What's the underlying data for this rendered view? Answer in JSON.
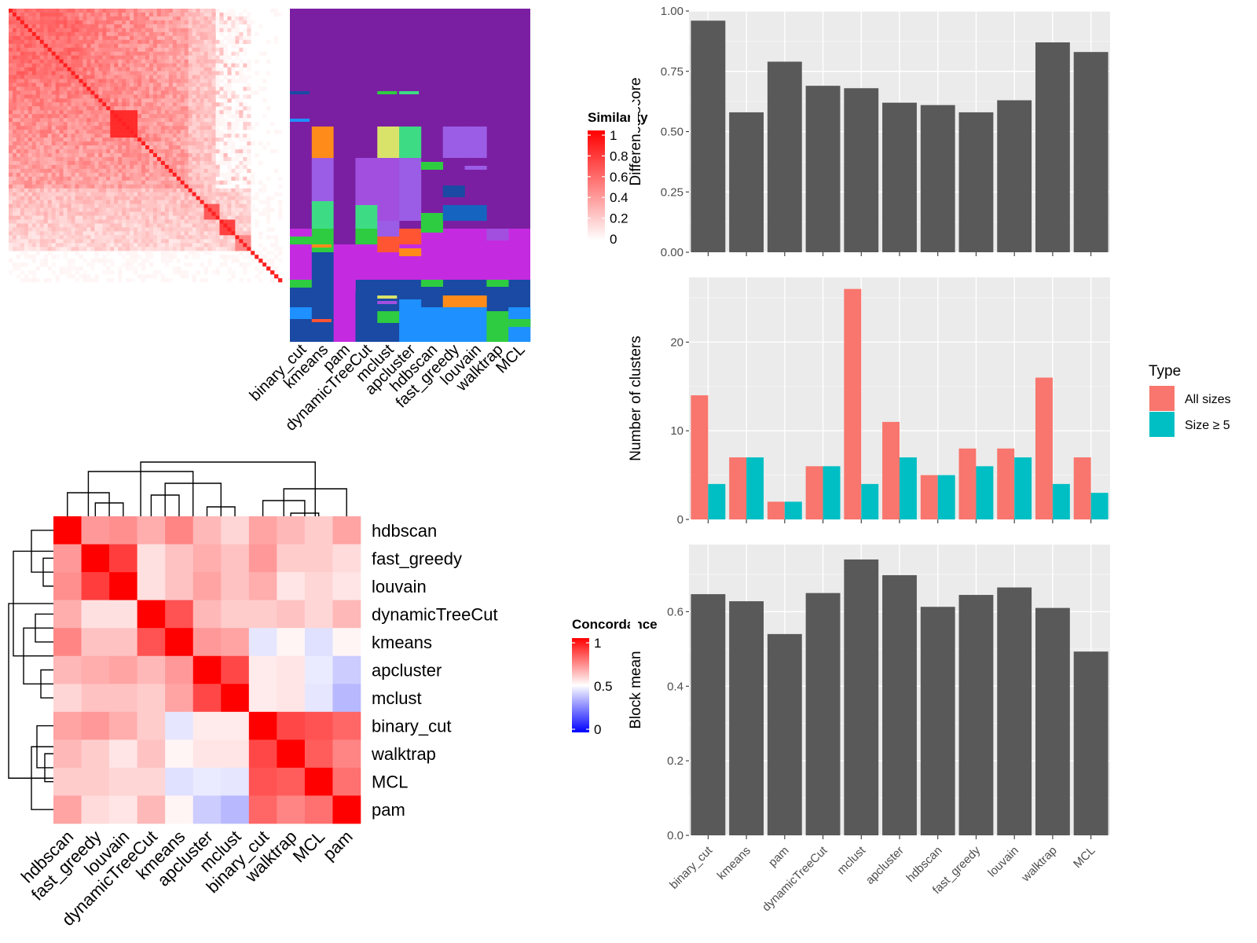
{
  "chart_data": [
    {
      "type": "heatmap",
      "panel": "similarity",
      "legend_title": "Similarity",
      "legend_ticks": [
        "1",
        "0.8",
        "0.6",
        "0.4",
        "0.2",
        "0"
      ],
      "legend_values": [
        1,
        0.8,
        0.6,
        0.4,
        0.2,
        0
      ],
      "colors": {
        "low": "#ffffff",
        "high": "#ff0000"
      },
      "cluster_columns": [
        "binary_cut",
        "kmeans",
        "pam",
        "dynamicTreeCut",
        "mclust",
        "apcluster",
        "hdbscan",
        "fast_greedy",
        "louvain",
        "walktrap",
        "MCL"
      ]
    },
    {
      "type": "heatmap",
      "panel": "concordance",
      "legend_title": "Concordance",
      "legend_ticks": [
        "1",
        "0.5",
        "0"
      ],
      "legend_values": [
        1,
        0.5,
        0
      ],
      "colors": {
        "low": "#0000ff",
        "mid": "#ffffff",
        "high": "#ff0000"
      },
      "rows": [
        "hdbscan",
        "fast_greedy",
        "louvain",
        "dynamicTreeCut",
        "kmeans",
        "apcluster",
        "mclust",
        "binary_cut",
        "walktrap",
        "MCL",
        "pam"
      ],
      "columns": [
        "hdbscan",
        "fast_greedy",
        "louvain",
        "dynamicTreeCut",
        "kmeans",
        "apcluster",
        "mclust",
        "binary_cut",
        "walktrap",
        "MCL",
        "pam"
      ],
      "values": [
        [
          1.0,
          0.7,
          0.72,
          0.66,
          0.74,
          0.64,
          0.58,
          0.68,
          0.64,
          0.6,
          0.68
        ],
        [
          0.7,
          1.0,
          0.88,
          0.56,
          0.62,
          0.66,
          0.62,
          0.7,
          0.6,
          0.6,
          0.57
        ],
        [
          0.72,
          0.88,
          1.0,
          0.56,
          0.62,
          0.68,
          0.62,
          0.66,
          0.55,
          0.58,
          0.55
        ],
        [
          0.66,
          0.56,
          0.56,
          1.0,
          0.84,
          0.64,
          0.6,
          0.6,
          0.62,
          0.58,
          0.64
        ],
        [
          0.74,
          0.62,
          0.62,
          0.84,
          1.0,
          0.7,
          0.68,
          0.45,
          0.52,
          0.44,
          0.52
        ],
        [
          0.64,
          0.66,
          0.68,
          0.64,
          0.7,
          1.0,
          0.86,
          0.54,
          0.55,
          0.46,
          0.4
        ],
        [
          0.58,
          0.62,
          0.62,
          0.6,
          0.68,
          0.86,
          1.0,
          0.54,
          0.55,
          0.45,
          0.36
        ],
        [
          0.68,
          0.7,
          0.66,
          0.6,
          0.45,
          0.54,
          0.54,
          1.0,
          0.86,
          0.84,
          0.8
        ],
        [
          0.64,
          0.6,
          0.55,
          0.62,
          0.52,
          0.55,
          0.55,
          0.86,
          1.0,
          0.82,
          0.74
        ],
        [
          0.6,
          0.6,
          0.58,
          0.58,
          0.44,
          0.46,
          0.45,
          0.84,
          0.82,
          1.0,
          0.78
        ],
        [
          0.68,
          0.57,
          0.55,
          0.64,
          0.52,
          0.4,
          0.36,
          0.8,
          0.74,
          0.78,
          1.0
        ]
      ]
    },
    {
      "type": "bar",
      "panel": "difference-score",
      "categories": [
        "binary_cut",
        "kmeans",
        "pam",
        "dynamicTreeCut",
        "mclust",
        "apcluster",
        "hdbscan",
        "fast_greedy",
        "louvain",
        "walktrap",
        "MCL"
      ],
      "values": [
        0.96,
        0.58,
        0.79,
        0.69,
        0.68,
        0.62,
        0.61,
        0.58,
        0.63,
        0.87,
        0.83
      ],
      "ylabel": "Difference score",
      "ylim": [
        0,
        1.0
      ],
      "yticks": [
        "0.00",
        "0.25",
        "0.50",
        "0.75",
        "1.00"
      ],
      "ytick_values": [
        0,
        0.25,
        0.5,
        0.75,
        1.0
      ],
      "bar_color": "#595959"
    },
    {
      "type": "bar",
      "panel": "number-of-clusters",
      "categories": [
        "binary_cut",
        "kmeans",
        "pam",
        "dynamicTreeCut",
        "mclust",
        "apcluster",
        "hdbscan",
        "fast_greedy",
        "louvain",
        "walktrap",
        "MCL"
      ],
      "series": [
        {
          "name": "All sizes",
          "values": [
            14,
            7,
            2,
            6,
            26,
            11,
            5,
            8,
            8,
            16,
            7
          ],
          "color": "#f8766d"
        },
        {
          "name": "Size ≥ 5",
          "values": [
            4,
            7,
            2,
            6,
            4,
            7,
            5,
            6,
            7,
            4,
            3
          ],
          "color": "#00bfc4"
        }
      ],
      "ylabel": "Number of clusters",
      "ylim": [
        0,
        27.3
      ],
      "yticks": [
        "0",
        "10",
        "20"
      ],
      "ytick_values": [
        0,
        10,
        20
      ],
      "legend_title": "Type",
      "legend_position": "right"
    },
    {
      "type": "bar",
      "panel": "block-mean",
      "categories": [
        "binary_cut",
        "kmeans",
        "pam",
        "dynamicTreeCut",
        "mclust",
        "apcluster",
        "hdbscan",
        "fast_greedy",
        "louvain",
        "walktrap",
        "MCL"
      ],
      "values": [
        0.647,
        0.628,
        0.54,
        0.65,
        0.74,
        0.698,
        0.613,
        0.645,
        0.665,
        0.61,
        0.493
      ],
      "ylabel": "Block mean",
      "ylim": [
        0,
        0.78
      ],
      "yticks": [
        "0.0",
        "0.2",
        "0.4",
        "0.6"
      ],
      "ytick_values": [
        0,
        0.2,
        0.4,
        0.6
      ],
      "bar_color": "#595959"
    }
  ]
}
